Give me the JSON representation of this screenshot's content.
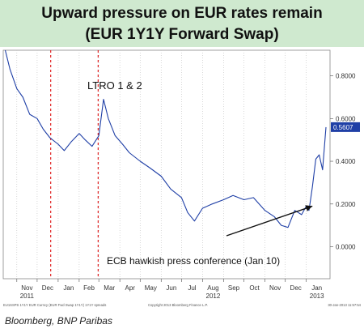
{
  "title": {
    "line1": "Upward pressure on EUR rates remain",
    "line2": "(EUR 1Y1Y Forward Swap)"
  },
  "source": "Bloomberg, BNP Paribas",
  "colors": {
    "title_bg": "#cfe9cf",
    "line": "#1f3fa6",
    "event_line": "#e02020",
    "last_value_box": "#1f3fa6"
  },
  "chart_data": {
    "type": "line",
    "title": "",
    "xlabel": "",
    "ylabel": "",
    "ylim": [
      -0.15,
      0.92
    ],
    "y_axis_side": "right",
    "y_ticks": [
      "0.8000",
      "0.6000",
      "0.4000",
      "0.2000",
      "0.0000"
    ],
    "y_tick_values": [
      0.8,
      0.6,
      0.4,
      0.2,
      0.0
    ],
    "grid": "vertical dotted at month starts",
    "x_tick_labels": [
      {
        "label": "Nov",
        "year": "2011",
        "date": "2011-11"
      },
      {
        "label": "Dec",
        "date": "2011-12"
      },
      {
        "label": "Jan",
        "date": "2012-01"
      },
      {
        "label": "Feb",
        "date": "2012-02"
      },
      {
        "label": "Mar",
        "date": "2012-03"
      },
      {
        "label": "Apr",
        "date": "2012-04"
      },
      {
        "label": "May",
        "date": "2012-05"
      },
      {
        "label": "Jun",
        "date": "2012-06"
      },
      {
        "label": "Jul",
        "date": "2012-07"
      },
      {
        "label": "Aug",
        "year": "2012",
        "date": "2012-08"
      },
      {
        "label": "Sep",
        "date": "2012-09"
      },
      {
        "label": "Oct",
        "date": "2012-10"
      },
      {
        "label": "Nov",
        "date": "2012-11"
      },
      {
        "label": "Dec",
        "date": "2012-12"
      },
      {
        "label": "Jan",
        "year": "2013",
        "date": "2013-01"
      }
    ],
    "series": [
      {
        "x": [
          "2011-10-15",
          "2011-10-22",
          "2011-11-01",
          "2011-11-10",
          "2011-11-20",
          "2011-12-01",
          "2011-12-10",
          "2011-12-20",
          "2012-01-01",
          "2012-01-10",
          "2012-01-20",
          "2012-02-01",
          "2012-02-10",
          "2012-02-20",
          "2012-03-01",
          "2012-03-08",
          "2012-03-15",
          "2012-03-25",
          "2012-04-05",
          "2012-04-15",
          "2012-05-01",
          "2012-05-15",
          "2012-06-01",
          "2012-06-15",
          "2012-07-01",
          "2012-07-10",
          "2012-07-20",
          "2012-08-01",
          "2012-08-15",
          "2012-09-01",
          "2012-09-15",
          "2012-10-01",
          "2012-10-15",
          "2012-11-01",
          "2012-11-15",
          "2012-11-25",
          "2012-12-05",
          "2012-12-15",
          "2012-12-25",
          "2013-01-01",
          "2013-01-05",
          "2013-01-10",
          "2013-01-15",
          "2013-01-20",
          "2013-01-25",
          "2013-01-30"
        ],
        "values": [
          0.92,
          0.83,
          0.74,
          0.7,
          0.62,
          0.6,
          0.55,
          0.51,
          0.48,
          0.45,
          0.49,
          0.53,
          0.5,
          0.47,
          0.52,
          0.69,
          0.6,
          0.52,
          0.48,
          0.44,
          0.4,
          0.37,
          0.33,
          0.27,
          0.23,
          0.16,
          0.12,
          0.18,
          0.2,
          0.22,
          0.24,
          0.22,
          0.23,
          0.17,
          0.14,
          0.1,
          0.09,
          0.17,
          0.15,
          0.19,
          0.17,
          0.28,
          0.41,
          0.43,
          0.36,
          0.56
        ]
      }
    ],
    "last_value": "0.5607",
    "event_lines": [
      {
        "date": "2011-12-21",
        "label": ""
      },
      {
        "date": "2012-02-29",
        "label": ""
      }
    ],
    "annotations": [
      {
        "text": "LTRO 1 & 2"
      },
      {
        "text": "ECB hawkish press conference (Jan 10)",
        "arrow_to_date": "2013-01-10",
        "arrow_to_value": 0.19
      }
    ],
    "footer": {
      "left": "EU1SSPS 1Y1Y EUR Curncy  (EUR Fwd Swap 1Y1Y)  1Y1Y spreads",
      "center": "Copyright 2013 Bloomberg Finance L.P.",
      "right": "30-Jan-2013 11:57:54"
    }
  }
}
